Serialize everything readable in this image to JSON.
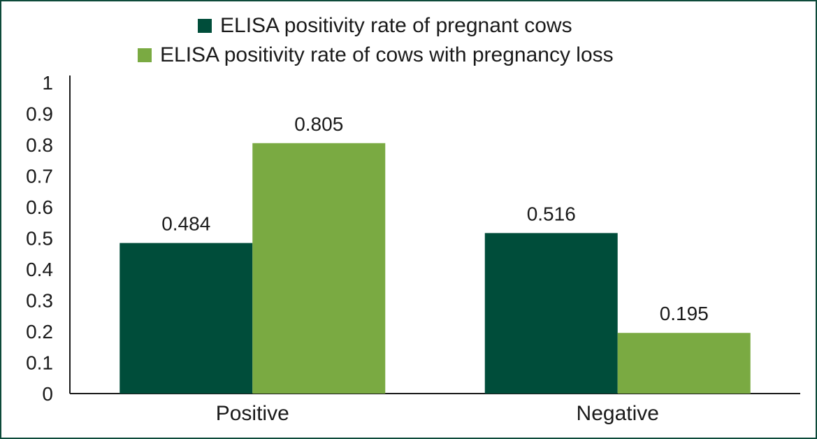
{
  "chart_data": {
    "type": "bar",
    "categories": [
      "Positive",
      "Negative"
    ],
    "series": [
      {
        "name": "ELISA positivity rate of pregnant cows",
        "values": [
          0.484,
          0.516
        ],
        "color": "#004d3a"
      },
      {
        "name": "ELISA positivity rate of cows with pregnancy loss",
        "values": [
          0.805,
          0.195
        ],
        "color": "#7aaa42"
      }
    ],
    "data_labels": [
      [
        "0.484",
        "0.516"
      ],
      [
        "0.805",
        "0.195"
      ]
    ],
    "yticks": [
      "0",
      "0.1",
      "0.2",
      "0.3",
      "0.4",
      "0.5",
      "0.6",
      "0.7",
      "0.8",
      "0.9",
      "1"
    ],
    "ylim": [
      0,
      1
    ],
    "grid": false,
    "legend_position": "top-center",
    "title": "",
    "xlabel": "",
    "ylabel": ""
  },
  "colors": {
    "frame": "#0d4a3a",
    "axis": "#1a1a1a"
  }
}
